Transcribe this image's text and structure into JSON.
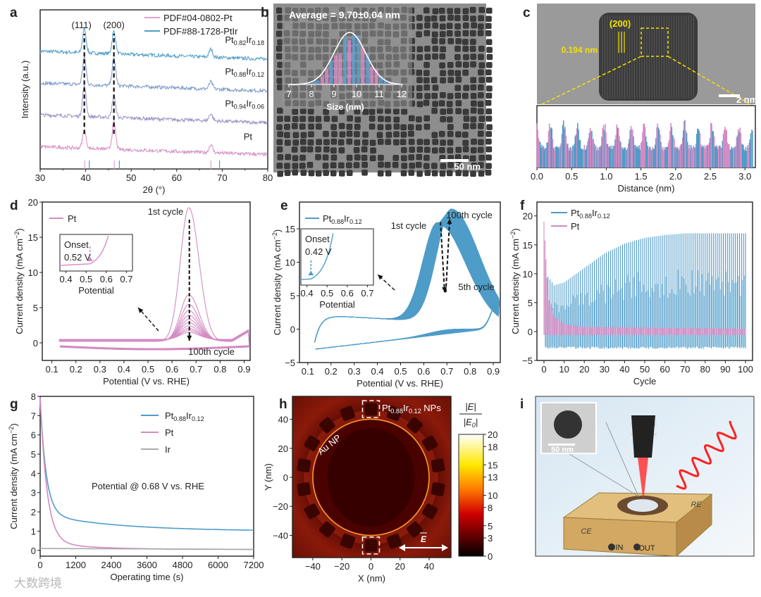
{
  "panel_letters": [
    "a",
    "b",
    "c",
    "d",
    "e",
    "f",
    "g",
    "h",
    "i"
  ],
  "watermark": "大数跨境",
  "chart_data": [
    {
      "id": "a",
      "type": "line",
      "xlabel": "2θ (°)",
      "ylabel": "Intensity (a.u.)",
      "xlim": [
        30,
        80
      ],
      "ylim": [
        0,
        10
      ],
      "xticks": [
        30,
        40,
        50,
        60,
        70,
        80
      ],
      "xtick_labels": [
        "30",
        "40",
        "50",
        "60",
        "70",
        "80"
      ],
      "peak_labels": [
        {
          "text": "(111)",
          "x": 39.7
        },
        {
          "text": "(200)",
          "x": 46.2
        }
      ],
      "peaks": [
        39.7,
        46.2,
        67.5
      ],
      "series": [
        {
          "name": "Pt_{0.82}Ir_{0.18}",
          "color": "#4f9cc8",
          "offset": 6.9,
          "heights": [
            1.5,
            1.4,
            0.5
          ]
        },
        {
          "name": "Pt_{0.88}Ir_{0.12}",
          "color": "#7a98c8",
          "offset": 4.9,
          "heights": [
            1.7,
            1.7,
            0.45
          ]
        },
        {
          "name": "Pt_{0.94}Ir_{0.06}",
          "color": "#9c90c6",
          "offset": 2.9,
          "heights": [
            1.9,
            1.3,
            0.45
          ]
        },
        {
          "name": "Pt",
          "color": "#d48bc3",
          "offset": 0.9,
          "heights": [
            1.1,
            1.7,
            0.5
          ]
        }
      ],
      "legend": [
        {
          "label": "PDF#04-0802-Pt",
          "color": "#e1a0d6"
        },
        {
          "label": "PDF#88-1728-PtIr",
          "color": "#4f9cc8"
        }
      ],
      "reference_lines": {
        "Pt": [
          39.8,
          46.3,
          67.5
        ],
        "PtIr": [
          40.8,
          47.4,
          69.4
        ]
      }
    },
    {
      "id": "b",
      "type": "bar",
      "title": "Average = 9.70±0.04 nm",
      "xlabel": "Size (nm)",
      "xlim": [
        7,
        12
      ],
      "xticks": [
        7,
        8,
        9,
        10,
        11,
        12
      ],
      "xtick_labels": [
        "7",
        "8",
        "9",
        "10",
        "11",
        "12"
      ],
      "fit_mean": 9.7,
      "fit_sd": 0.7,
      "scale_bar": "50 nm"
    },
    {
      "id": "c",
      "type": "bar",
      "plane_label": "(200)",
      "spacing_label": "0.194 nm",
      "scale_bar": "2 nm",
      "xlabel": "Distance (nm)",
      "xlim": [
        0,
        3.15
      ],
      "xticks": [
        0,
        0.5,
        1,
        1.5,
        2,
        2.5,
        3
      ],
      "xtick_labels": [
        "0.0",
        "0.5",
        "1.0",
        "1.5",
        "2.0",
        "2.5",
        "3.0"
      ],
      "lattice_spacing_nm": 0.194
    },
    {
      "id": "d",
      "type": "line",
      "xlabel": "Potential (V vs. RHE)",
      "ylabel": "Current density (mA cm^{−2})",
      "xlim": [
        0.06,
        0.925
      ],
      "ylim": [
        -2.5,
        20
      ],
      "xticks": [
        0.1,
        0.2,
        0.3,
        0.4,
        0.5,
        0.6,
        0.7,
        0.8,
        0.9
      ],
      "xtick_labels": [
        "0.1",
        "0.2",
        "0.3",
        "0.4",
        "0.5",
        "0.6",
        "0.7",
        "0.8",
        "0.9"
      ],
      "yticks": [
        0,
        5,
        10,
        15,
        20
      ],
      "ytick_labels": [
        "0",
        "5",
        "10",
        "15",
        "20"
      ],
      "legend": [
        {
          "label": "Pt",
          "color": "#d48bc3"
        }
      ],
      "peak_potential": 0.67,
      "cycle_peaks": [
        19,
        6.6,
        5.2,
        4.3,
        3.6,
        3.0,
        2.5,
        2.0,
        1.6,
        1.3,
        1.0
      ],
      "annotations": {
        "first": "1st cycle",
        "last": "100th cycle"
      },
      "inset": {
        "title": "Onset",
        "value": "0.52 V",
        "onset": 0.52,
        "xlabel": "Potential",
        "xticks": [
          0.4,
          0.5,
          0.6,
          0.7
        ],
        "xtick_labels": [
          "0.4",
          "0.5",
          "0.6",
          "0.7"
        ]
      }
    },
    {
      "id": "e",
      "type": "line",
      "xlabel": "Potential (V vs. RHE)",
      "ylabel": "Current density (mA cm^{−2})",
      "xlim": [
        0.064,
        0.93
      ],
      "ylim": [
        -5,
        19
      ],
      "xticks": [
        0.1,
        0.2,
        0.3,
        0.4,
        0.5,
        0.6,
        0.7,
        0.8,
        0.9
      ],
      "xtick_labels": [
        "0.1",
        "0.2",
        "0.3",
        "0.4",
        "0.5",
        "0.6",
        "0.7",
        "0.8",
        "0.9"
      ],
      "yticks": [
        -5,
        0,
        5,
        10,
        15
      ],
      "ytick_labels": [
        "−5",
        "0",
        "5",
        "10",
        "15"
      ],
      "legend": [
        {
          "label": "Pt_{0.88}Ir_{0.12}",
          "color": "#4f9cc8"
        }
      ],
      "peak_range": [
        0.66,
        0.72
      ],
      "peak_current_range": [
        14.5,
        17
      ],
      "annotations": {
        "first": "1st cycle",
        "last": "100th cycle",
        "mid": "5th cycle"
      },
      "inset": {
        "title": "Onset",
        "value": "0.42 V",
        "onset": 0.42,
        "xlabel": "Potential",
        "xticks": [
          0.4,
          0.5,
          0.6,
          0.7
        ],
        "xtick_labels": [
          "0.4",
          "0.5",
          "0.6",
          "0.7"
        ]
      }
    },
    {
      "id": "f",
      "type": "bar",
      "xlabel": "Cycle",
      "ylabel": "Current density (mA cm^{−2})",
      "xlim": [
        -3.5,
        103.5
      ],
      "ylim": [
        -5,
        22.4
      ],
      "xticks": [
        0,
        10,
        20,
        30,
        40,
        50,
        60,
        70,
        80,
        90,
        100
      ],
      "xtick_labels": [
        "0",
        "10",
        "20",
        "30",
        "40",
        "50",
        "60",
        "70",
        "80",
        "90",
        "100"
      ],
      "yticks": [
        -5,
        0,
        5,
        10,
        15,
        20
      ],
      "ytick_labels": [
        "−5",
        "0",
        "5",
        "10",
        "15",
        "20"
      ],
      "series": [
        {
          "name": "Pt_{0.88}Ir_{0.12}",
          "color": "#4f9cc8",
          "peak_by_cycle": {
            "1": 10,
            "5": 8,
            "10": 8.5,
            "20": 11,
            "30": 13.5,
            "40": 15.2,
            "50": 16.2,
            "60": 16.7,
            "70": 17,
            "100": 17
          },
          "min": -3
        },
        {
          "name": "Pt",
          "color": "#d48bc3",
          "peak_by_cycle": {
            "0": 19,
            "2": 6,
            "5": 2.5,
            "10": 1.3,
            "20": 0.8,
            "100": 0.5
          },
          "min": -0.6
        }
      ]
    },
    {
      "id": "g",
      "type": "line",
      "xlabel": "Operating time (s)",
      "ylabel": "Current density (mA cm^{−2})",
      "xlim": [
        0,
        7200
      ],
      "ylim": [
        -0.3,
        8
      ],
      "xticks": [
        0,
        1200,
        2400,
        3600,
        4800,
        6000,
        7200
      ],
      "xtick_labels": [
        "0",
        "1200",
        "2400",
        "3600",
        "4800",
        "6000",
        "7200"
      ],
      "yticks": [
        0,
        1,
        2,
        3,
        4,
        5,
        6,
        7,
        8
      ],
      "ytick_labels": [
        "0",
        "1",
        "2",
        "3",
        "4",
        "5",
        "6",
        "7",
        "8"
      ],
      "annotation": "Potential @ 0.68 V vs. RHE",
      "series": [
        {
          "name": "Pt_{0.88}Ir_{0.12}",
          "color": "#4f9cc8",
          "x": [
            0,
            300,
            600,
            1200,
            2400,
            3600,
            4800,
            6000,
            7200
          ],
          "y": [
            8,
            3.2,
            2.2,
            1.75,
            1.5,
            1.35,
            1.25,
            1.17,
            1.1
          ]
        },
        {
          "name": "Pt",
          "color": "#d48bc3",
          "x": [
            0,
            300,
            600,
            1200,
            2400,
            3600,
            4800,
            6000,
            7200
          ],
          "y": [
            8,
            2.1,
            0.8,
            0.3,
            0.15,
            0.1,
            0.08,
            0.06,
            0.05
          ]
        },
        {
          "name": "Ir",
          "color": "#aaaaaa",
          "x": [
            0,
            7200
          ],
          "y": [
            0.1,
            0.05
          ]
        }
      ]
    },
    {
      "id": "h",
      "type": "heatmap",
      "xlabel": "X (nm)",
      "ylabel": "Y (nm)",
      "xlim": [
        -54,
        55
      ],
      "ylim": [
        -55.3,
        55.8
      ],
      "xticks": [
        -40,
        -20,
        0,
        20,
        40
      ],
      "xtick_labels": [
        "−40",
        "−20",
        "0",
        "20",
        "40"
      ],
      "yticks": [
        -40,
        -20,
        0,
        20,
        40
      ],
      "ytick_labels": [
        "−40",
        "−20",
        "0",
        "20",
        "40"
      ],
      "labels": {
        "nps": "Pt_{0.88}Ir_{0.12} NPs",
        "core": "Au NP",
        "field": "E"
      },
      "colorbar": {
        "title_num": "|E|",
        "title_den": "|E_{0}|",
        "range": [
          0,
          20
        ],
        "ticks": [
          "0",
          "3",
          "5",
          "8",
          "10",
          "13",
          "15",
          "18",
          "20"
        ]
      }
    },
    {
      "id": "i",
      "type": "table",
      "inset_scale_bar": "50 nm",
      "electrode_labels": [
        "CE",
        "RE",
        "IN",
        "OUT"
      ]
    }
  ]
}
